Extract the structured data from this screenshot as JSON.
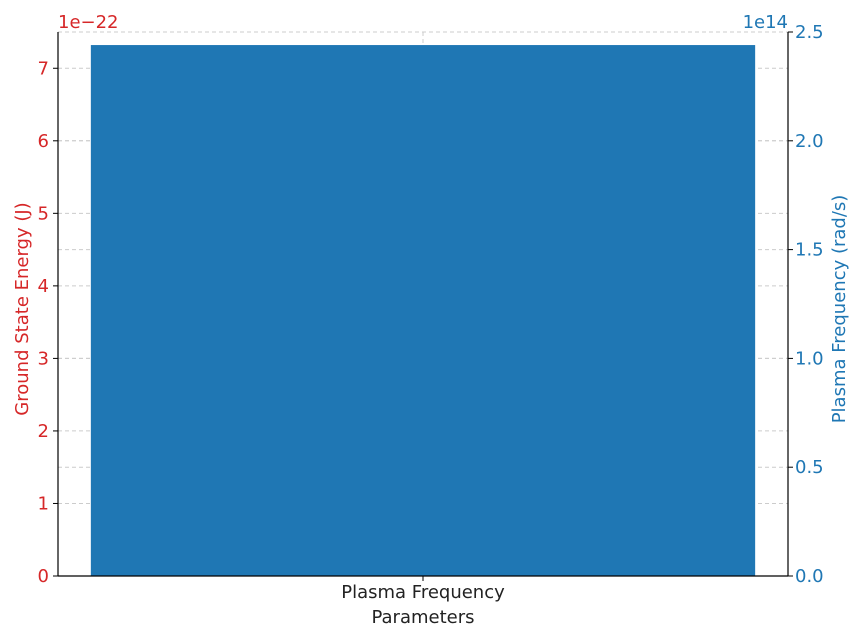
{
  "chart_data": {
    "type": "bar",
    "categories": [
      "Plasma Frequency"
    ],
    "xlabel": "Parameters",
    "left_axis": {
      "label": "Ground State Energy (J)",
      "offset_text": "1e−22",
      "scale": 1e-22,
      "ylim": [
        0,
        7.5
      ],
      "ticks": [
        0,
        1,
        2,
        3,
        4,
        5,
        6,
        7
      ],
      "tick_labels": [
        "0",
        "1",
        "2",
        "3",
        "4",
        "5",
        "6",
        "7"
      ],
      "color": "#d62728"
    },
    "right_axis": {
      "label": "Plasma Frequency (rad/s)",
      "offset_text": "1e14",
      "scale": 100000000000000.0,
      "ylim": [
        0,
        2.5
      ],
      "ticks": [
        0,
        0.5,
        1.0,
        1.5,
        2.0,
        2.5
      ],
      "tick_labels": [
        "0.0",
        "0.5",
        "1.0",
        "1.5",
        "2.0",
        "2.5"
      ],
      "color": "#1f77b4"
    },
    "series": [
      {
        "axis": "right",
        "values": [
          2.44
        ],
        "color": "#1f77b4"
      }
    ],
    "grid": true
  }
}
